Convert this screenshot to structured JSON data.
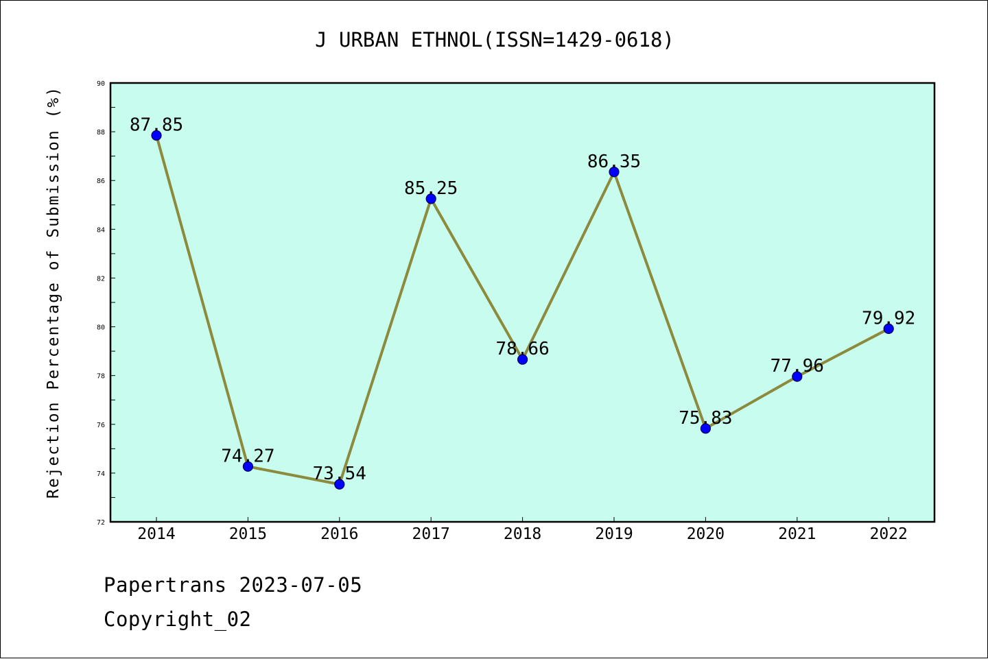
{
  "chart_data": {
    "type": "line",
    "title": "J URBAN ETHNOL(ISSN=1429-0618)",
    "xlabel": "",
    "ylabel": "Rejection Percentage of Submission (%)",
    "categories": [
      "2014",
      "2015",
      "2016",
      "2017",
      "2018",
      "2019",
      "2020",
      "2021",
      "2022"
    ],
    "values": [
      87.85,
      74.27,
      73.54,
      85.25,
      78.66,
      86.35,
      75.83,
      77.96,
      79.92
    ],
    "data_labels": [
      "87.85",
      "74.27",
      "73.54",
      "85.25",
      "78.66",
      "86.35",
      "75.83",
      "77.96",
      "79.92"
    ],
    "ylim": [
      72,
      90
    ],
    "yticks": [
      "72",
      "74",
      "76",
      "78",
      "80",
      "82",
      "84",
      "86",
      "88",
      "90"
    ],
    "grid": false,
    "legend": "none",
    "colors": {
      "plot_background": "#c8fcee",
      "line": "#8c8a3c",
      "marker": "#0000ff"
    }
  },
  "footer": {
    "line1": "Papertrans 2023-07-05",
    "line2": "Copyright_02"
  }
}
